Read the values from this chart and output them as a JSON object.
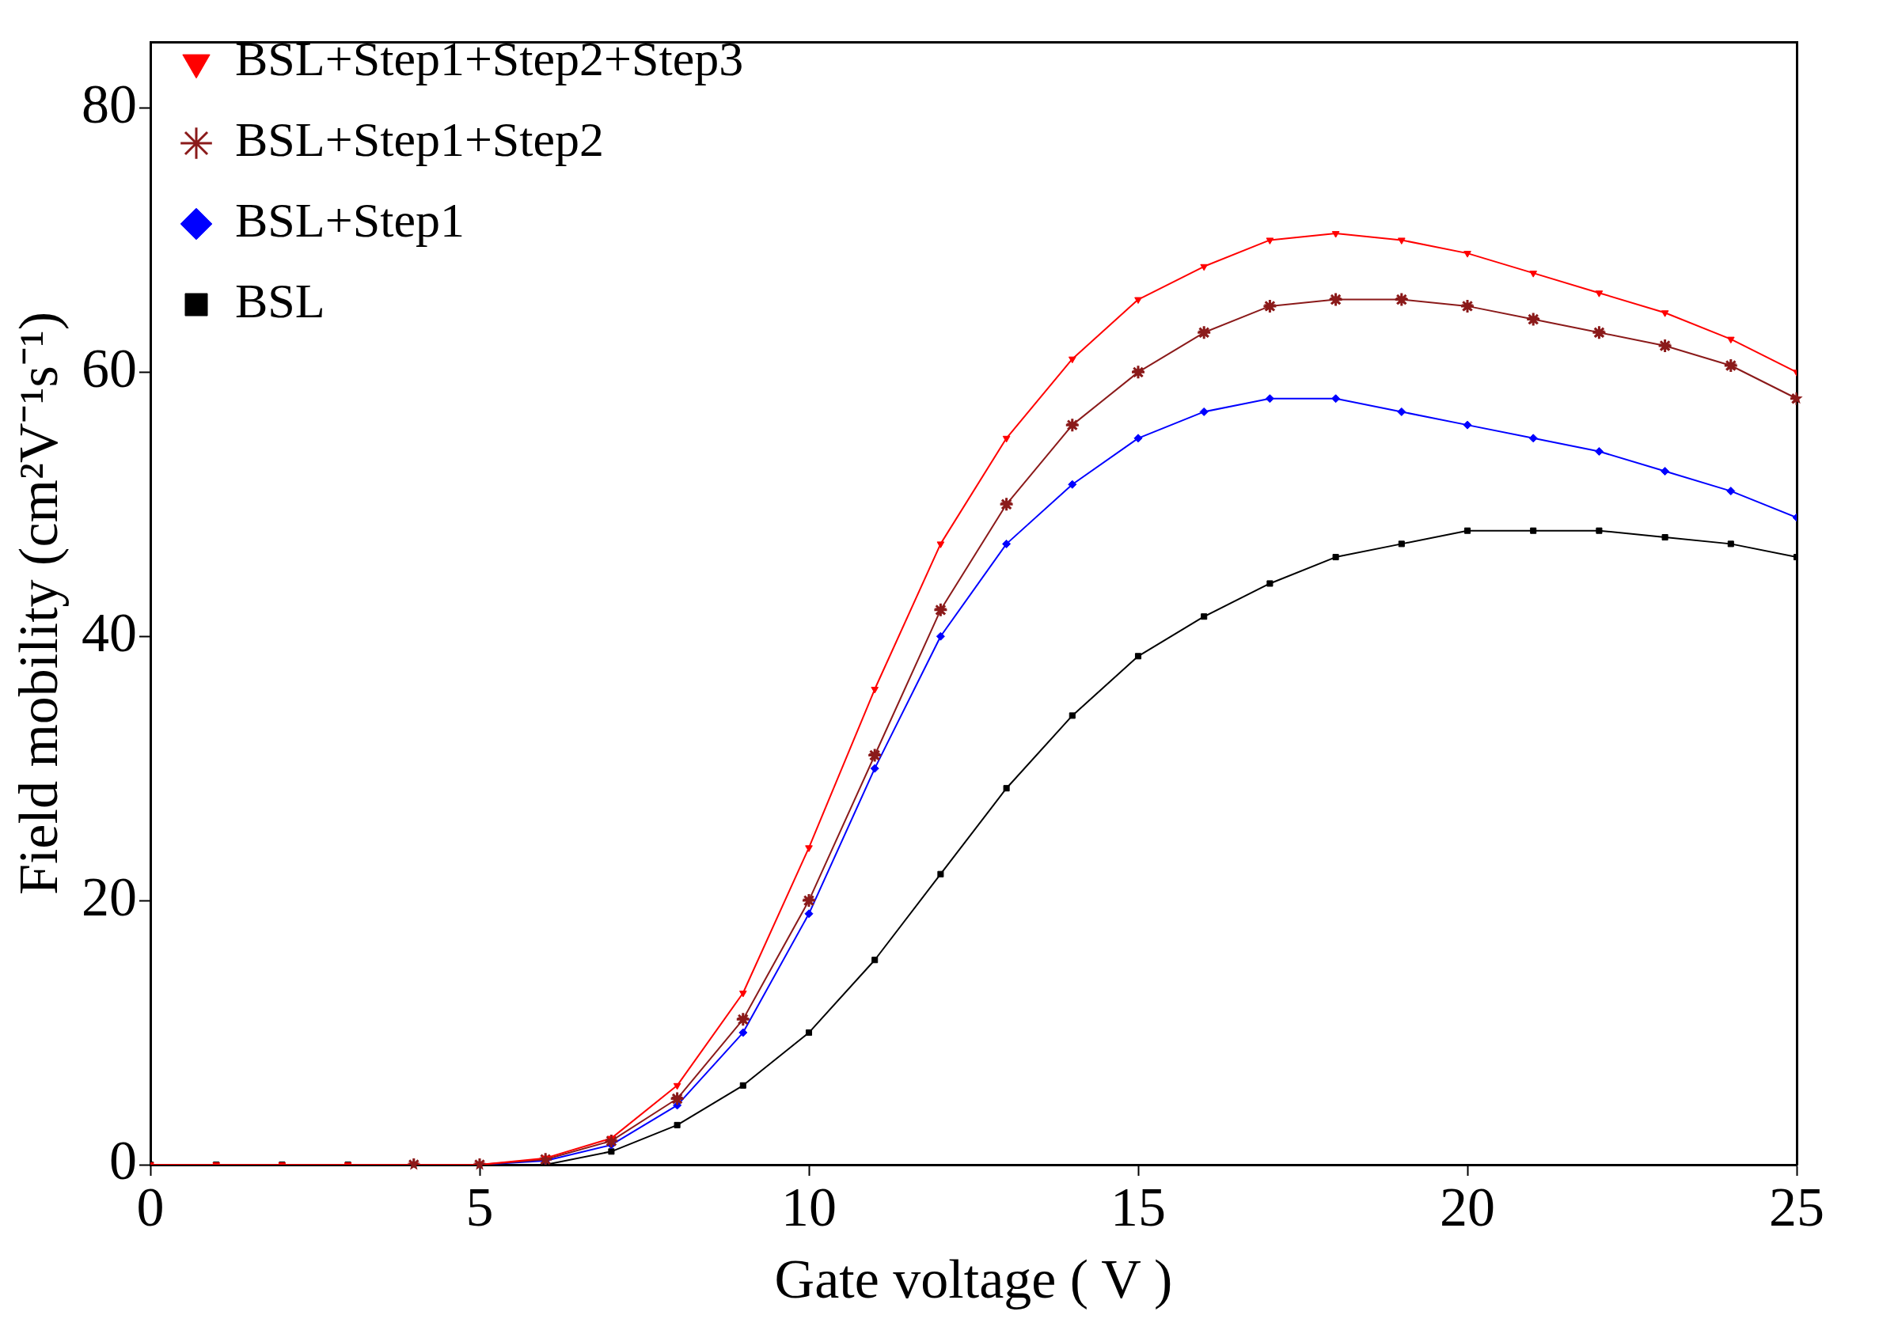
{
  "chart_data": {
    "type": "line",
    "xlabel": "Gate voltage ( V )",
    "ylabel": "Field mobility (cm²V⁻¹s⁻¹)",
    "x": [
      0,
      1,
      2,
      3,
      4,
      5,
      6,
      7,
      8,
      9,
      10,
      11,
      12,
      13,
      14,
      15,
      16,
      17,
      18,
      19,
      20,
      21,
      22,
      23,
      24,
      25
    ],
    "xlim": [
      0,
      25
    ],
    "xticks": [
      0,
      5,
      10,
      15,
      20,
      25
    ],
    "ylim": [
      0,
      85
    ],
    "yticks": [
      0,
      20,
      40,
      60,
      80
    ],
    "grid": false,
    "legend": "top left",
    "line_style": "solid",
    "series": [
      {
        "name": "BSL+Step1+Step2+Step3",
        "color": "#ff0000",
        "marker": "triangle-down",
        "values": [
          0,
          0,
          0,
          0,
          0,
          0,
          0.5,
          2,
          6,
          13,
          24,
          36,
          47,
          55,
          61,
          65.5,
          68,
          70,
          70.5,
          70,
          69,
          67.5,
          66,
          64.5,
          62.5,
          60
        ]
      },
      {
        "name": "BSL+Step1+Step2",
        "color": "#8b1a1a",
        "marker": "star",
        "values": [
          null,
          null,
          null,
          null,
          0,
          0,
          0.4,
          1.8,
          5,
          11,
          20,
          31,
          42,
          50,
          56,
          60,
          63,
          65,
          65.5,
          65.5,
          65,
          64,
          63,
          62,
          60.5,
          58
        ]
      },
      {
        "name": "BSL+Step1",
        "color": "#0000ff",
        "marker": "diamond",
        "values": [
          null,
          null,
          null,
          null,
          0,
          0,
          0.3,
          1.5,
          4.5,
          10,
          19,
          30,
          40,
          47,
          51.5,
          55,
          57,
          58,
          58,
          57,
          56,
          55,
          54,
          52.5,
          51,
          49
        ]
      },
      {
        "name": "BSL",
        "color": "#000000",
        "marker": "square",
        "values": [
          0,
          0,
          0,
          0,
          0,
          0,
          0,
          1,
          3,
          6,
          10,
          15.5,
          22,
          28.5,
          34,
          38.5,
          41.5,
          44,
          46,
          47,
          48,
          48,
          48,
          47.5,
          47,
          46
        ]
      }
    ]
  }
}
